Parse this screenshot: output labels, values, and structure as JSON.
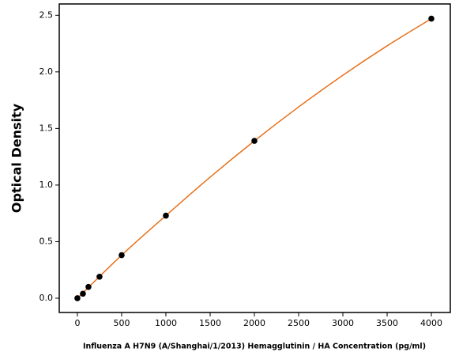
{
  "chart_data": {
    "type": "scatter",
    "xlabel": "Influenza A H7N9 (A/Shanghai/1/2013) Hemagglutinin / HA Concentration (pg/ml)",
    "ylabel": "Optical Density",
    "xlim": [
      -205,
      4214
    ],
    "ylim": [
      -0.126,
      2.6
    ],
    "xticks": [
      0,
      500,
      1000,
      1500,
      2000,
      2500,
      3000,
      3500,
      4000
    ],
    "yticks": [
      {
        "value": 0,
        "label": "0.0"
      },
      0.5,
      {
        "value": 1,
        "label": "1.0"
      },
      1.5,
      {
        "value": 2,
        "label": "2.0"
      },
      2.5
    ],
    "series": [
      {
        "type": "line",
        "color": "#e8711b",
        "x": [
          0,
          500,
          1000,
          1500,
          2000,
          2500,
          3000,
          3500,
          4000
        ],
        "values": [
          0,
          0.38,
          0.73,
          1.07,
          1.39,
          1.69,
          1.97,
          2.23,
          2.47
        ]
      },
      {
        "type": "scatter",
        "color": "#000000",
        "x": [
          0,
          62.5,
          125,
          250,
          500,
          1000,
          2000,
          4000
        ],
        "values": [
          0,
          0.04,
          0.1,
          0.19,
          0.38,
          0.73,
          1.39,
          2.47
        ]
      }
    ]
  }
}
